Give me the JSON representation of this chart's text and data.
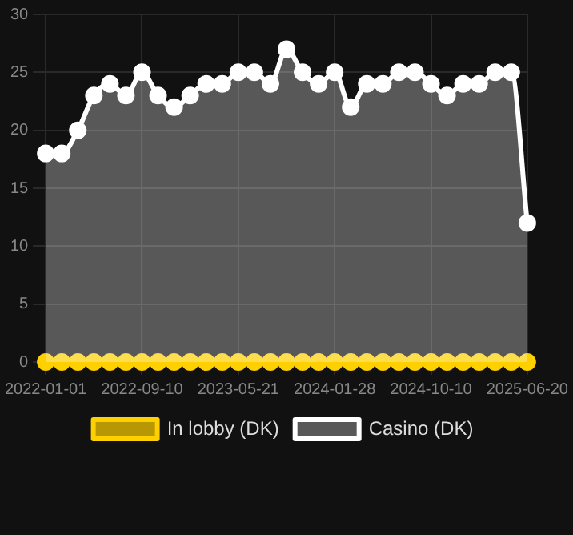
{
  "chart_data": {
    "type": "area",
    "categories": [
      "2022-01-01",
      null,
      null,
      null,
      null,
      null,
      "2022-09-10",
      null,
      null,
      null,
      null,
      null,
      "2023-05-21",
      null,
      null,
      null,
      null,
      null,
      "2024-01-28",
      null,
      null,
      null,
      null,
      null,
      "2024-10-10",
      null,
      null,
      null,
      null,
      null,
      "2025-06-20"
    ],
    "series": [
      {
        "name": "In lobby (DK)",
        "type": "line",
        "color": "#ffd000",
        "values": [
          0,
          0,
          0,
          0,
          0,
          0,
          0,
          0,
          0,
          0,
          0,
          0,
          0,
          0,
          0,
          0,
          0,
          0,
          0,
          0,
          0,
          0,
          0,
          0,
          0,
          0,
          0,
          0,
          0,
          0,
          0
        ]
      },
      {
        "name": "Casino (DK)",
        "color": "#ffffff",
        "values": [
          18,
          18,
          20,
          23,
          24,
          23,
          25,
          23,
          22,
          23,
          24,
          24,
          25,
          25,
          24,
          27,
          25,
          24,
          25,
          22,
          24,
          24,
          25,
          25,
          24,
          23,
          24,
          24,
          25,
          25,
          12
        ]
      }
    ],
    "ylim": [
      0,
      30
    ],
    "yticks": [
      0,
      5,
      10,
      15,
      20,
      25,
      30
    ],
    "grid": true,
    "legend": "bottom",
    "marker": "circle"
  }
}
